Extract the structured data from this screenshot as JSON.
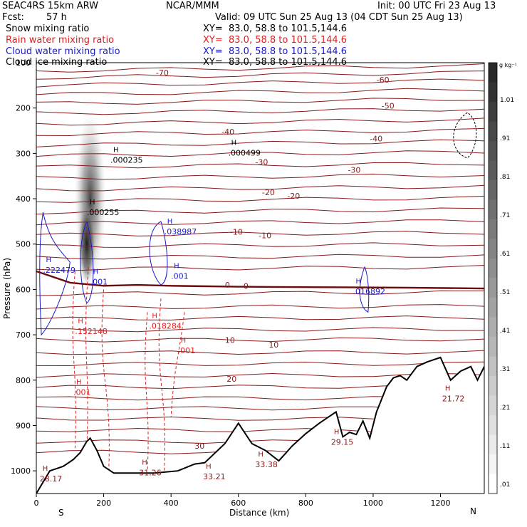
{
  "header": {
    "model": "SEAC4RS 15km ARW",
    "org": "NCAR/MMM",
    "init": "Init: 00 UTC Fri 23 Aug 13",
    "fcst_label": "Fcst:",
    "fcst_value": "57 h",
    "valid": "Valid: 09 UTC Sun 25 Aug 13 (04 CDT Sun 25 Aug 13)",
    "fields": [
      {
        "name": "Snow mixing ratio",
        "xy": "XY=  83.0, 58.8 to 101.5,144.6",
        "color": "#000000"
      },
      {
        "name": "Rain water mixing ratio",
        "xy": "XY=  83.0, 58.8 to 101.5,144.6",
        "color": "#e02020"
      },
      {
        "name": "Cloud water mixing ratio",
        "xy": "XY=  83.0, 58.8 to 101.5,144.6",
        "color": "#1a1acc"
      },
      {
        "name": "Cloud ice mixing ratio",
        "xy": "XY=  83.0, 58.8 to 101.5,144.6",
        "color": "#000000"
      }
    ]
  },
  "chart_data": {
    "type": "contour-cross-section",
    "xlabel": "Distance (km)",
    "ylabel": "Pressure (hPa)",
    "xlim": [
      0,
      1330
    ],
    "ylim": [
      1050,
      100
    ],
    "x_ticks": [
      0,
      200,
      400,
      600,
      800,
      1000,
      1200
    ],
    "y_ticks": [
      200,
      300,
      400,
      500,
      600,
      700,
      800,
      900,
      1000
    ],
    "y_tick_label_100": "100",
    "x_endpoints": {
      "left": "S",
      "right": "N"
    },
    "colorbar": {
      "unit": "g kg⁻¹",
      "levels": [
        "1.01",
        ".91",
        ".81",
        ".71",
        ".61",
        ".51",
        ".41",
        ".31",
        ".21",
        ".11",
        ".01"
      ]
    },
    "temperature_contour_labels": [
      {
        "text": "-70",
        "x": 355,
        "p": 122
      },
      {
        "text": "-60",
        "x": 1010,
        "p": 138
      },
      {
        "text": "-50",
        "x": 1025,
        "p": 195
      },
      {
        "text": "-40",
        "x": 550,
        "p": 252
      },
      {
        "text": "-40",
        "x": 990,
        "p": 267
      },
      {
        "text": "-30",
        "x": 650,
        "p": 319
      },
      {
        "text": "-30",
        "x": 925,
        "p": 336
      },
      {
        "text": "-20",
        "x": 670,
        "p": 386
      },
      {
        "text": "-20",
        "x": 745,
        "p": 394
      },
      {
        "text": "-10",
        "x": 575,
        "p": 473
      },
      {
        "text": "-10",
        "x": 660,
        "p": 481
      },
      {
        "text": "0",
        "x": 560,
        "p": 590
      },
      {
        "text": "0",
        "x": 615,
        "p": 592
      },
      {
        "text": "10",
        "x": 560,
        "p": 712
      },
      {
        "text": "10",
        "x": 690,
        "p": 722
      },
      {
        "text": "20",
        "x": 565,
        "p": 797
      },
      {
        "text": "30",
        "x": 470,
        "p": 945
      }
    ],
    "maxima_labels": [
      {
        "text": ".000235",
        "x": 220,
        "p": 314,
        "color": "#000000"
      },
      {
        "text": ".000499",
        "x": 570,
        "p": 299,
        "color": "#000000"
      },
      {
        "text": ".000255",
        "x": 150,
        "p": 430,
        "color": "#000000"
      },
      {
        "text": ".038987",
        "x": 380,
        "p": 472,
        "color": "#1a1acc"
      },
      {
        "text": ".222479",
        "x": 20,
        "p": 557,
        "color": "#1a1acc"
      },
      {
        "text": ".001",
        "x": 160,
        "p": 583,
        "color": "#1a1acc"
      },
      {
        "text": ".001",
        "x": 400,
        "p": 570,
        "color": "#1a1acc"
      },
      {
        "text": ".016892",
        "x": 940,
        "p": 604,
        "color": "#1a1acc"
      },
      {
        "text": ".018284",
        "x": 335,
        "p": 680,
        "color": "#e02020"
      },
      {
        "text": ".152148",
        "x": 115,
        "p": 692,
        "color": "#e02020"
      },
      {
        "text": ".001",
        "x": 420,
        "p": 734,
        "color": "#e02020"
      },
      {
        "text": ".001",
        "x": 110,
        "p": 826,
        "color": "#e02020"
      },
      {
        "text": "28.17",
        "x": 10,
        "p": 1017,
        "color": "#8b1a1a"
      },
      {
        "text": "31.26",
        "x": 305,
        "p": 1004,
        "color": "#8b1a1a"
      },
      {
        "text": "33.21",
        "x": 495,
        "p": 1012,
        "color": "#8b1a1a"
      },
      {
        "text": "33.38",
        "x": 650,
        "p": 986,
        "color": "#8b1a1a"
      },
      {
        "text": "29.15",
        "x": 875,
        "p": 936,
        "color": "#8b1a1a"
      },
      {
        "text": "21.72",
        "x": 1205,
        "p": 840,
        "color": "#8b1a1a"
      }
    ],
    "terrain": {
      "x": [
        0,
        40,
        80,
        110,
        130,
        150,
        160,
        180,
        200,
        230,
        280,
        350,
        420,
        470,
        500,
        560,
        600,
        640,
        680,
        720,
        760,
        800,
        840,
        870,
        890,
        910,
        930,
        950,
        970,
        990,
        1010,
        1040,
        1060,
        1080,
        1100,
        1130,
        1160,
        1200,
        1230,
        1260,
        1290,
        1310,
        1330
      ],
      "p": [
        1050,
        1000,
        990,
        975,
        960,
        935,
        928,
        955,
        990,
        1005,
        1005,
        1005,
        1000,
        985,
        982,
        940,
        895,
        940,
        955,
        978,
        945,
        918,
        895,
        880,
        870,
        925,
        915,
        920,
        890,
        928,
        870,
        815,
        795,
        790,
        800,
        770,
        760,
        750,
        800,
        780,
        770,
        800,
        770
      ]
    },
    "freezing_level_p": [
      560,
      585,
      592,
      590,
      592,
      594,
      595,
      596,
      598
    ]
  },
  "colors": {
    "temperature": "#8b1a1a",
    "freezing": "#6b0a0a",
    "rain": "#e02020",
    "cloud_water": "#1a1acc",
    "ice": "#000000"
  }
}
